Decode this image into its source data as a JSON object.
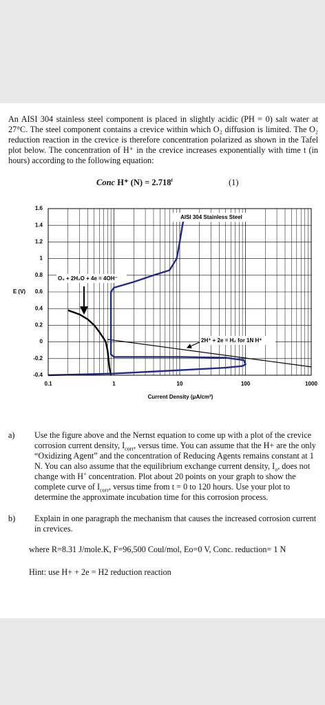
{
  "document": {
    "intro": "An AISI 304 stainless steel component is placed in slightly acidic (PH = 0) salt water at 27°C. The steel component contains a crevice within which O₂ diffusion is limited. The O₂ reduction reaction in the crevice is therefore concentration polarized as shown in the Tafel plot below. The concentration of H⁺ in the crevice increases exponentially with time t (in hours) according to the following equation:",
    "equation": {
      "lhs": "Conc",
      "rest": " H⁺ (N) = 2.718",
      "exp": "t",
      "number": "(1)"
    },
    "questions": [
      {
        "label": "a)",
        "text": [
          "Use the figure above and the Nernst equation to come up with a plot of the crevice corrosion current density, I",
          "corr",
          ", versus time. You can assume that the H+ are the only “Oxidizing Agent” and the concentration of Reducing Agents remains constant at 1 N. You can also assume that the equilibrium exchange current density, I",
          "o",
          ", does not change with H",
          "+",
          " concentration. Plot about 20 points on your graph to show the complete curve of I",
          "corr",
          ", versus time from t = 0 to 120 hours. Use your plot to determine the approximate incubation time for this corrosion process."
        ]
      },
      {
        "label": "b)",
        "text": [
          "Explain in one paragraph the mechanism that causes the increased corrosion current in crevices."
        ]
      }
    ],
    "constants": "where R=8.31 J/mole.K, F=96,500 Coul/mol, Eo=0 V, Conc. reduction= 1 N",
    "hint": "Hint: use H+ + 2e = H2 reduction reaction"
  },
  "chart_data": {
    "type": "line",
    "x_label": "Current Density (μA/cm²)",
    "y_label": "E (V)",
    "annotations": [
      "AISI 304 Stainless Steel",
      "O₂ + 2H₂O + 4e = 4OH⁻",
      "2H⁺ + 2e = H₂ for 1N H⁺"
    ],
    "log_x": true,
    "grid": true,
    "xlim": [
      0.1,
      1000
    ],
    "xticks": [
      0.1,
      1,
      10,
      100,
      1000
    ],
    "ylim": [
      -0.4,
      1.6
    ],
    "yticks": [
      -0.4,
      -0.2,
      0,
      0.2,
      0.4,
      0.6,
      0.8,
      1,
      1.2,
      1.4,
      1.6
    ],
    "series": [
      {
        "color": "#000000",
        "x": [
          0.2,
          0.3,
          0.4,
          0.5,
          0.6,
          0.7,
          0.75,
          0.8,
          0.85,
          0.9
        ],
        "values": [
          0.38,
          0.33,
          0.27,
          0.2,
          0.12,
          0.04,
          0,
          -0.1,
          -0.3,
          -0.4
        ]
      },
      {
        "color": "#000000",
        "x": [
          0.8,
          1000
        ],
        "values": [
          0.03,
          -0.3
        ]
      },
      {
        "color": "#1f2a8c",
        "x": [
          0.1,
          1,
          10,
          50,
          90,
          100,
          95,
          50,
          10,
          1,
          0.9,
          0.9,
          1,
          2,
          4,
          7,
          9,
          10,
          11,
          12
        ],
        "values": [
          -0.4,
          -0.38,
          -0.34,
          -0.31,
          -0.29,
          -0.27,
          -0.22,
          -0.19,
          -0.18,
          -0.18,
          -0.15,
          0.6,
          0.65,
          0.72,
          0.8,
          0.86,
          1.0,
          1.2,
          1.4,
          1.55
        ]
      }
    ]
  }
}
